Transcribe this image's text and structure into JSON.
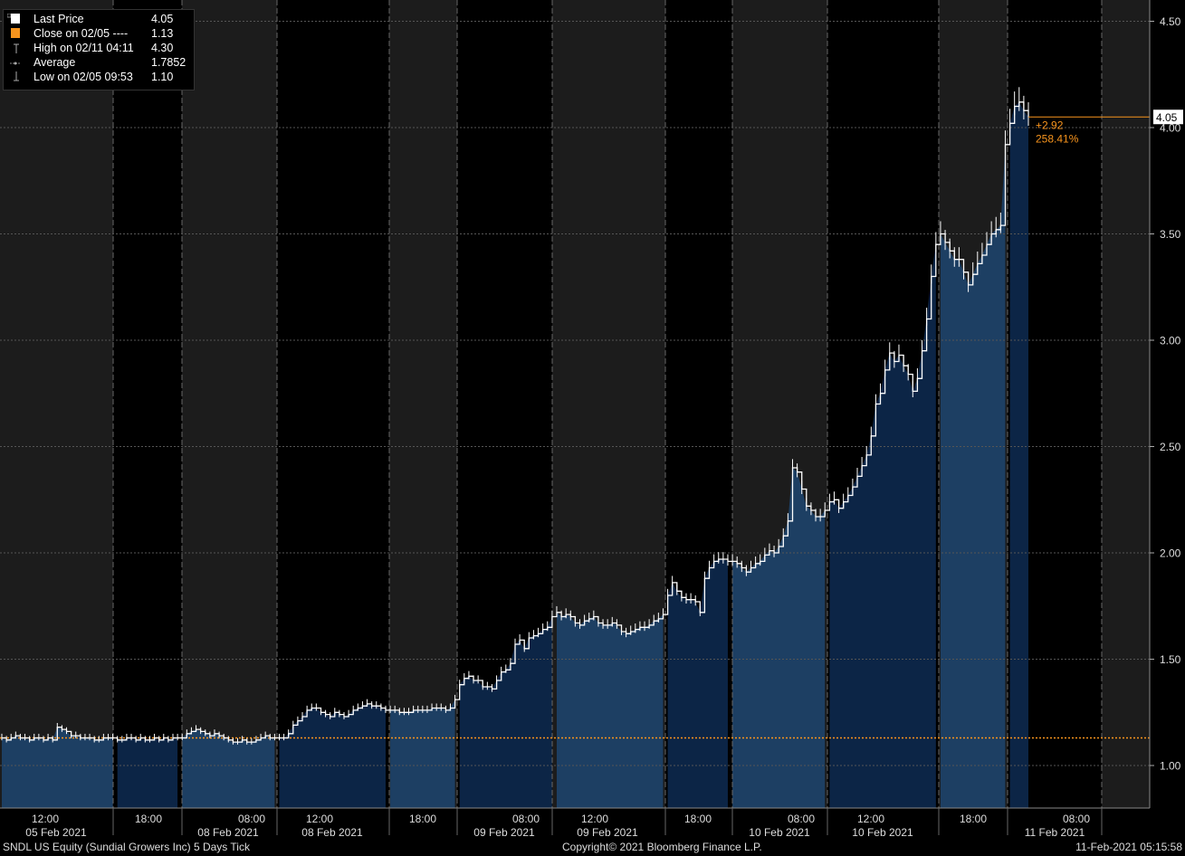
{
  "legend": {
    "items": [
      {
        "label": "Last Price",
        "value": "4.05",
        "icon": "white-square-icon"
      },
      {
        "label": "Close on 02/05 ----",
        "value": "1.13",
        "icon": "orange-square-icon"
      },
      {
        "label": "High on 02/11 04:11",
        "value": "4.30",
        "icon": "high-marker-icon"
      },
      {
        "label": "Average",
        "value": "1.7852",
        "icon": "average-marker-icon"
      },
      {
        "label": "Low on 02/05 09:53",
        "value": "1.10",
        "icon": "low-marker-icon"
      }
    ]
  },
  "footer": {
    "left": "SNDL US Equity (Sundial Growers Inc) 5 Days  Tick",
    "center": "Copyright© 2021 Bloomberg Finance L.P.",
    "right": "11-Feb-2021 05:15:58"
  },
  "chart_data": {
    "type": "area",
    "ylim": [
      0.8,
      4.6
    ],
    "y_ticks": [
      "1.00",
      "1.50",
      "2.00",
      "2.50",
      "3.00",
      "3.50",
      "4.00",
      "4.50"
    ],
    "y_tick_values": [
      1.0,
      1.5,
      2.0,
      2.5,
      3.0,
      3.5,
      4.0,
      4.5
    ],
    "x_time_labels": [
      "12:00",
      "18:00",
      "08:00",
      "12:00",
      "18:00",
      "08:00",
      "12:00",
      "18:00",
      "08:00",
      "12:00",
      "18:00",
      "08:00"
    ],
    "x_date_labels": [
      "05 Feb 2021",
      "08 Feb 2021",
      "08 Feb 2021",
      "09 Feb 2021",
      "09 Feb 2021",
      "10 Feb 2021",
      "10 Feb 2021",
      "11 Feb 2021"
    ],
    "reference_close": 1.13,
    "last_price_label": "4.05",
    "change_label": "+2.92",
    "change_pct_label": "258.41%",
    "colors": {
      "area_dark": "#0c2546",
      "area_light": "#1d3f63",
      "price_line": "#ffffff",
      "close_line": "#f7941d",
      "session_shade": "#1c1c1c",
      "grid": "#555555"
    },
    "series": [
      {
        "values": [
          1.13,
          1.12,
          1.13,
          1.14,
          1.13,
          1.13,
          1.12,
          1.13,
          1.13,
          1.12,
          1.13,
          1.12,
          1.18,
          1.17,
          1.16,
          1.14,
          1.14,
          1.13,
          1.13,
          1.13,
          1.12,
          1.12,
          1.13,
          1.13,
          1.13,
          1.12,
          1.12,
          1.13,
          1.13,
          1.12,
          1.13,
          1.12,
          1.12,
          1.13,
          1.12,
          1.13,
          1.12,
          1.13,
          1.13,
          1.13,
          1.15,
          1.16,
          1.17,
          1.16,
          1.15,
          1.14,
          1.15,
          1.14,
          1.13,
          1.12,
          1.11,
          1.11,
          1.12,
          1.11,
          1.11,
          1.12,
          1.13,
          1.14,
          1.13,
          1.13,
          1.13,
          1.13,
          1.15,
          1.19,
          1.21,
          1.23,
          1.26,
          1.27,
          1.27,
          1.25,
          1.24,
          1.23,
          1.25,
          1.24,
          1.23,
          1.24,
          1.26,
          1.27,
          1.28,
          1.29,
          1.28,
          1.28,
          1.27,
          1.26,
          1.26,
          1.26,
          1.25,
          1.25,
          1.25,
          1.26,
          1.26,
          1.26,
          1.26,
          1.27,
          1.27,
          1.27,
          1.26,
          1.27,
          1.31,
          1.38,
          1.41,
          1.42,
          1.4,
          1.4,
          1.37,
          1.37,
          1.36,
          1.4,
          1.44,
          1.45,
          1.48,
          1.57,
          1.59,
          1.55,
          1.6,
          1.61,
          1.62,
          1.64,
          1.65,
          1.7,
          1.72,
          1.7,
          1.71,
          1.7,
          1.67,
          1.66,
          1.68,
          1.69,
          1.7,
          1.67,
          1.66,
          1.66,
          1.67,
          1.66,
          1.63,
          1.62,
          1.63,
          1.64,
          1.65,
          1.65,
          1.66,
          1.68,
          1.69,
          1.71,
          1.8,
          1.86,
          1.82,
          1.79,
          1.78,
          1.78,
          1.77,
          1.72,
          1.88,
          1.93,
          1.96,
          1.97,
          1.97,
          1.96,
          1.96,
          1.95,
          1.93,
          1.91,
          1.93,
          1.95,
          1.96,
          1.99,
          2.01,
          2.0,
          2.03,
          2.08,
          2.15,
          2.4,
          2.38,
          2.3,
          2.22,
          2.2,
          2.17,
          2.17,
          2.2,
          2.24,
          2.25,
          2.21,
          2.24,
          2.27,
          2.31,
          2.36,
          2.41,
          2.46,
          2.55,
          2.7,
          2.75,
          2.86,
          2.94,
          2.9,
          2.93,
          2.88,
          2.84,
          2.76,
          2.82,
          2.95,
          3.1,
          3.3,
          3.45,
          3.5,
          3.46,
          3.42,
          3.38,
          3.38,
          3.32,
          3.26,
          3.31,
          3.36,
          3.4,
          3.45,
          3.5,
          3.52,
          3.54,
          3.92,
          4.02,
          4.1,
          4.12,
          4.08,
          4.05
        ]
      }
    ],
    "title": "",
    "xlabel": "",
    "ylabel": ""
  }
}
